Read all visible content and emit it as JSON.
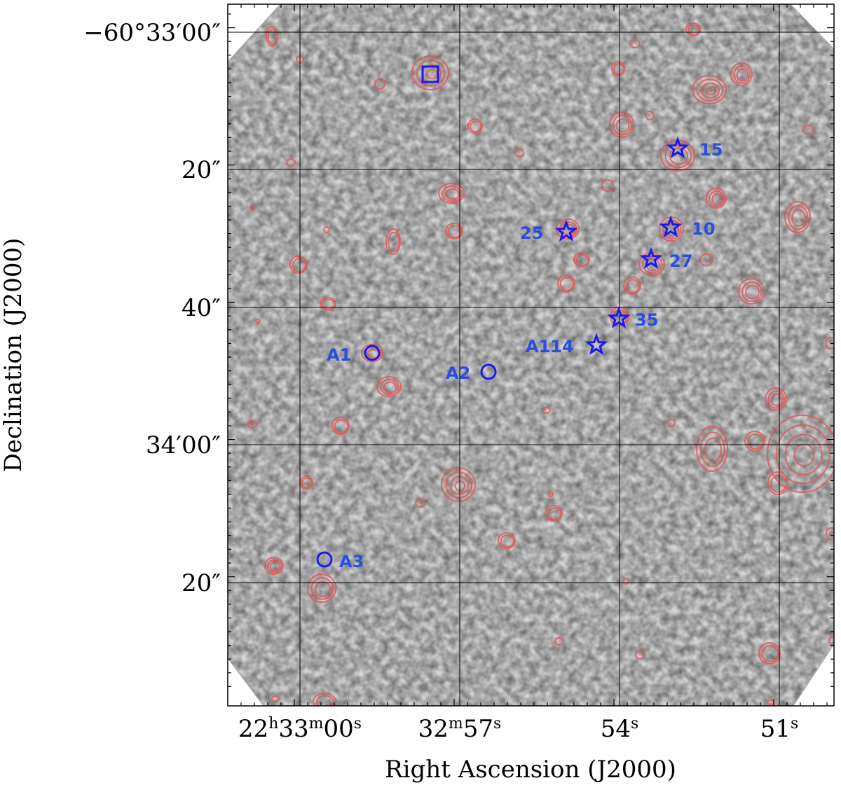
{
  "figure": {
    "xlabel": "Right Ascension (J2000)",
    "ylabel": "Declination (J2000)"
  },
  "ra_ticks": [
    {
      "h": "22",
      "hu": "h",
      "m": "33",
      "mu": "m",
      "s": "00",
      "su": "s"
    },
    {
      "h": "",
      "hu": "",
      "m": "32",
      "mu": "m",
      "s": "57",
      "su": "s"
    },
    {
      "h": "",
      "hu": "",
      "m": "",
      "mu": "",
      "s": "54",
      "su": "s"
    },
    {
      "h": "",
      "hu": "",
      "m": "",
      "mu": "",
      "s": "51",
      "su": "s"
    }
  ],
  "dec_ticks": [
    "−60°33′00″",
    "20″",
    "40″",
    "34′00″",
    "20″"
  ],
  "sources": [
    {
      "label": "15",
      "marker": "star"
    },
    {
      "label": "10",
      "marker": "star"
    },
    {
      "label": "25",
      "marker": "star"
    },
    {
      "label": "27",
      "marker": "star"
    },
    {
      "label": "35",
      "marker": "star"
    },
    {
      "label": "A114",
      "marker": "star"
    },
    {
      "label": "A1",
      "marker": "circle"
    },
    {
      "label": "A2",
      "marker": "circle"
    },
    {
      "label": "A3",
      "marker": "circle"
    },
    {
      "label": "",
      "marker": "square"
    }
  ],
  "colors": {
    "marker": "#1a1aee",
    "label": "#2a4ee0",
    "contour": "#e05a5a",
    "grid": "#000000"
  }
}
